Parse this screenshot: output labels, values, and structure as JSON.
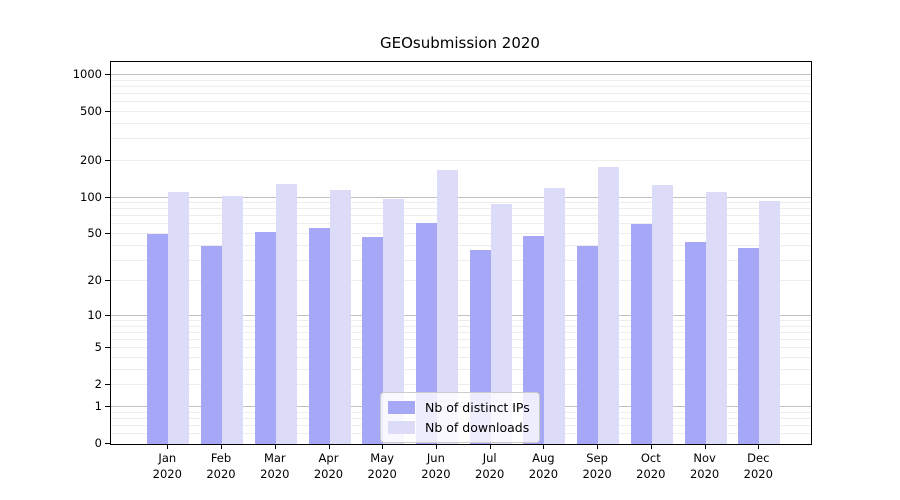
{
  "chart_data": {
    "type": "bar",
    "title": "GEOsubmission 2020",
    "categories": [
      "Jan 2020",
      "Feb 2020",
      "Mar 2020",
      "Apr 2020",
      "May 2020",
      "Jun 2020",
      "Jul 2020",
      "Aug 2020",
      "Sep 2020",
      "Oct 2020",
      "Nov 2020",
      "Dec 2020"
    ],
    "series": [
      {
        "name": "Nb of distinct IPs",
        "values": [
          50,
          40,
          52,
          56,
          47,
          62,
          37,
          48,
          40,
          61,
          43,
          38
        ]
      },
      {
        "name": "Nb of downloads",
        "values": [
          112,
          103,
          128,
          115,
          97,
          168,
          89,
          119,
          177,
          126,
          112,
          94
        ]
      }
    ],
    "xlabel": "",
    "ylabel": "",
    "yscale": "symlog (y proportional to log10(1+value))",
    "ylim": [
      0,
      1275
    ],
    "y_ticks": [
      0,
      1,
      2,
      5,
      10,
      20,
      50,
      100,
      200,
      500,
      1000
    ],
    "y_major_gridlines": [
      1,
      10,
      100,
      1000
    ],
    "y_minor_gridlines": [
      0.2,
      0.4,
      0.6,
      0.8,
      2,
      3,
      4,
      5,
      6,
      7,
      8,
      9,
      20,
      30,
      40,
      50,
      60,
      70,
      80,
      90,
      200,
      300,
      400,
      500,
      600,
      700,
      800,
      900
    ],
    "grid": "on",
    "legend_position": "lower center"
  },
  "legend": {
    "items": [
      {
        "label": "Nb of distinct IPs",
        "color_key": "distinct_ips"
      },
      {
        "label": "Nb of downloads",
        "color_key": "downloads"
      }
    ]
  },
  "colors": {
    "distinct_ips": "#a7a7f7",
    "downloads": "#dcdcf9",
    "grid_major": "#c0c0c0",
    "grid_minor": "#ededed",
    "spine": "#000000"
  }
}
